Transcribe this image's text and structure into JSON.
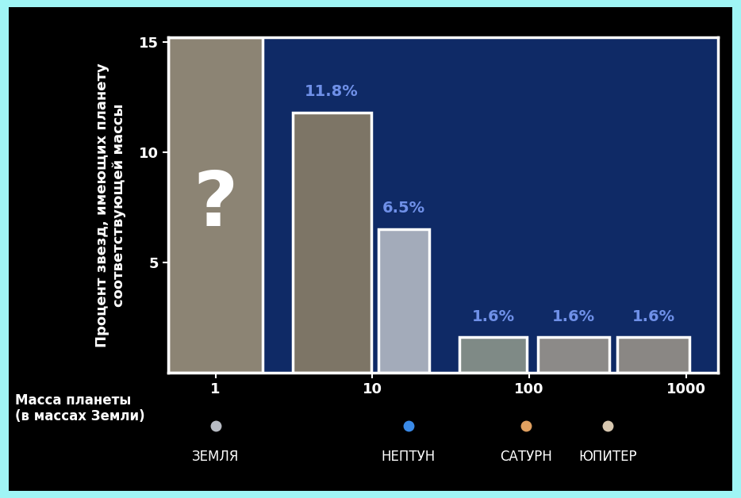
{
  "chart_data": {
    "type": "bar",
    "x_label": "Масса планеты\n(в массах Земли)",
    "y_label": "Процент звезд, имеющих планету\nсоответствующей массы",
    "log": "x",
    "x_ranges": [
      [
        0.5,
        2
      ],
      [
        3.1,
        9.8
      ],
      [
        11,
        23
      ],
      [
        36,
        97
      ],
      [
        114,
        325
      ],
      [
        365,
        1050
      ]
    ],
    "values": [
      null,
      11.8,
      6.5,
      1.6,
      1.6,
      1.6
    ],
    "value_labels": [
      "?",
      "11.8%",
      "6.5%",
      "1.6%",
      "1.6%",
      "1.6%"
    ],
    "colors": [
      "#8c8474",
      "#7d7566",
      "#a3abba",
      "#7f8a86",
      "#8c8a88",
      "#8a8784"
    ],
    "data_labels": true,
    "xlim": [
      0.5,
      1600
    ],
    "xticks": [
      1,
      10,
      100,
      1000
    ],
    "ylim": [
      0,
      15.2
    ],
    "yticks": [
      5,
      10,
      15
    ],
    "grid": false,
    "annotations": [
      {
        "text": "ЗЕМЛЯ",
        "x": 1,
        "color": "#b8bcc4"
      },
      {
        "text": "НЕПТУН",
        "x": 17,
        "color": "#3a8ae8"
      },
      {
        "text": "САТУРН",
        "x": 95,
        "color": "#e0a060"
      },
      {
        "text": "ЮПИТЕР",
        "x": 318,
        "color": "#d8c8b0"
      }
    ]
  }
}
